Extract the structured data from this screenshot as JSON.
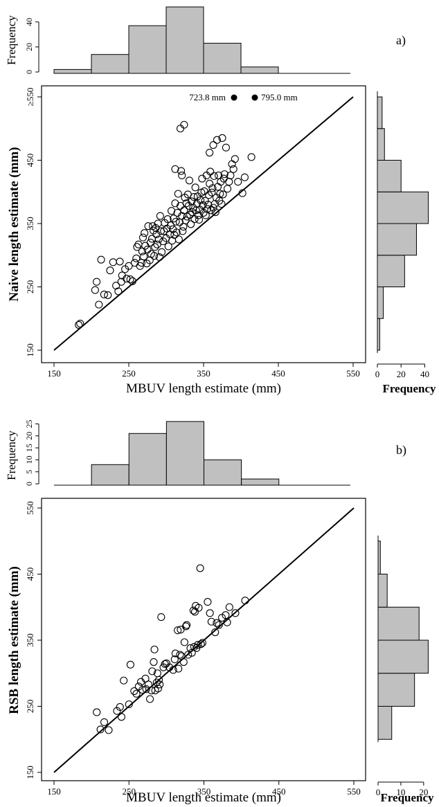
{
  "panels": [
    {
      "id": "a",
      "panel_label": "a)",
      "xlabel": "MBUV length estimate (mm)",
      "ylabel": "Naive length estimate (mm)",
      "hist_top_ylabel": "Frequency",
      "hist_right_xlabel": "Frequency",
      "off_scale_note_1": "723.8 mm",
      "off_scale_note_2": "795.0 mm",
      "x_ticks": [
        "150",
        "250",
        "350",
        "450",
        "550"
      ],
      "y_ticks": [
        "150",
        "250",
        "350",
        "450",
        "≥550"
      ],
      "top_hist_ticks": [
        "0",
        "20",
        "40"
      ],
      "right_hist_ticks": [
        "0",
        "20",
        "40"
      ]
    },
    {
      "id": "b",
      "panel_label": "b)",
      "xlabel": "MBUV length estimate (mm)",
      "ylabel": "RSB length estimate (mm)",
      "hist_top_ylabel": "Frequency",
      "hist_right_xlabel": "Frequency",
      "x_ticks": [
        "150",
        "250",
        "350",
        "450",
        "550"
      ],
      "y_ticks": [
        "150",
        "250",
        "350",
        "450",
        "550"
      ],
      "top_hist_ticks": [
        "0",
        "5",
        "10",
        "15",
        "20",
        "25"
      ],
      "right_hist_ticks": [
        "0",
        "10",
        "20"
      ]
    }
  ],
  "colors": {
    "bar_fill": "#c0c0c0",
    "ink": "#000000"
  },
  "chart_data": [
    {
      "type": "scatter",
      "panel": "a",
      "xlim": [
        150,
        550
      ],
      "ylim": [
        150,
        550
      ],
      "reference_line": [
        [
          150,
          150
        ],
        [
          550,
          550
        ]
      ],
      "off_scale_points": [
        723.8,
        795.0
      ],
      "points": [
        [
          185,
          192
        ],
        [
          183,
          190
        ],
        [
          205,
          245
        ],
        [
          207,
          258
        ],
        [
          210,
          222
        ],
        [
          213,
          293
        ],
        [
          217,
          238
        ],
        [
          222,
          237
        ],
        [
          225,
          276
        ],
        [
          229,
          289
        ],
        [
          233,
          252
        ],
        [
          236,
          243
        ],
        [
          238,
          290
        ],
        [
          240,
          258
        ],
        [
          241,
          268
        ],
        [
          245,
          278
        ],
        [
          247,
          263
        ],
        [
          250,
          283
        ],
        [
          252,
          262
        ],
        [
          255,
          259
        ],
        [
          258,
          288
        ],
        [
          260,
          295
        ],
        [
          261,
          313
        ],
        [
          263,
          317
        ],
        [
          265,
          283
        ],
        [
          267,
          288
        ],
        [
          268,
          306
        ],
        [
          269,
          328
        ],
        [
          270,
          298
        ],
        [
          271,
          335
        ],
        [
          272,
          315
        ],
        [
          274,
          287
        ],
        [
          275,
          309
        ],
        [
          276,
          346
        ],
        [
          278,
          292
        ],
        [
          279,
          320
        ],
        [
          280,
          302
        ],
        [
          281,
          326
        ],
        [
          282,
          346
        ],
        [
          283,
          339
        ],
        [
          284,
          299
        ],
        [
          285,
          313
        ],
        [
          286,
          343
        ],
        [
          287,
          333
        ],
        [
          288,
          317
        ],
        [
          289,
          350
        ],
        [
          290,
          325
        ],
        [
          291,
          297
        ],
        [
          292,
          362
        ],
        [
          293,
          338
        ],
        [
          294,
          305
        ],
        [
          296,
          322
        ],
        [
          297,
          338
        ],
        [
          298,
          351
        ],
        [
          300,
          327
        ],
        [
          301,
          342
        ],
        [
          302,
          357
        ],
        [
          303,
          314
        ],
        [
          305,
          333
        ],
        [
          306,
          347
        ],
        [
          307,
          370
        ],
        [
          308,
          323
        ],
        [
          309,
          341
        ],
        [
          310,
          358
        ],
        [
          311,
          332
        ],
        [
          312,
          382
        ],
        [
          313,
          353
        ],
        [
          314,
          336
        ],
        [
          315,
          367
        ],
        [
          316,
          397
        ],
        [
          317,
          325
        ],
        [
          318,
          352
        ],
        [
          319,
          378
        ],
        [
          320,
          433
        ],
        [
          321,
          362
        ],
        [
          322,
          338
        ],
        [
          323,
          345
        ],
        [
          324,
          371
        ],
        [
          325,
          391
        ],
        [
          326,
          355
        ],
        [
          327,
          382
        ],
        [
          328,
          361
        ],
        [
          329,
          396
        ],
        [
          330,
          378
        ],
        [
          331,
          418
        ],
        [
          332,
          364
        ],
        [
          333,
          349
        ],
        [
          334,
          385
        ],
        [
          335,
          368
        ],
        [
          336,
          375
        ],
        [
          337,
          392
        ],
        [
          338,
          357
        ],
        [
          339,
          407
        ],
        [
          340,
          371
        ],
        [
          341,
          381
        ],
        [
          342,
          393
        ],
        [
          343,
          363
        ],
        [
          344,
          356
        ],
        [
          345,
          372
        ],
        [
          346,
          387
        ],
        [
          347,
          399
        ],
        [
          348,
          421
        ],
        [
          349,
          379
        ],
        [
          350,
          367
        ],
        [
          351,
          401
        ],
        [
          352,
          386
        ],
        [
          353,
          363
        ],
        [
          354,
          426
        ],
        [
          355,
          373
        ],
        [
          356,
          380
        ],
        [
          357,
          395
        ],
        [
          358,
          413
        ],
        [
          359,
          432
        ],
        [
          360,
          371
        ],
        [
          361,
          399
        ],
        [
          362,
          406
        ],
        [
          363,
          375
        ],
        [
          364,
          425
        ],
        [
          365,
          381
        ],
        [
          366,
          368
        ],
        [
          367,
          391
        ],
        [
          368,
          482
        ],
        [
          369,
          408
        ],
        [
          370,
          426
        ],
        [
          371,
          386
        ],
        [
          372,
          397
        ],
        [
          373,
          416
        ],
        [
          374,
          381
        ],
        [
          375,
          485
        ],
        [
          376,
          396
        ],
        [
          377,
          421
        ],
        [
          378,
          428
        ],
        [
          380,
          470
        ],
        [
          382,
          405
        ],
        [
          384,
          416
        ],
        [
          386,
          426
        ],
        [
          388,
          444
        ],
        [
          390,
          436
        ],
        [
          392,
          452
        ],
        [
          396,
          416
        ],
        [
          402,
          398
        ],
        [
          405,
          423
        ],
        [
          414,
          455
        ],
        [
          319,
          500
        ],
        [
          324,
          506
        ],
        [
          312,
          436
        ],
        [
          321,
          426
        ],
        [
          358,
          462
        ],
        [
          363,
          474
        ]
      ]
    },
    {
      "type": "scatter",
      "panel": "b",
      "xlim": [
        150,
        550
      ],
      "ylim": [
        150,
        550
      ],
      "reference_line": [
        [
          150,
          150
        ],
        [
          550,
          550
        ]
      ],
      "points": [
        [
          207,
          241
        ],
        [
          212,
          215
        ],
        [
          217,
          226
        ],
        [
          223,
          214
        ],
        [
          234,
          243
        ],
        [
          238,
          249
        ],
        [
          240,
          234
        ],
        [
          243,
          289
        ],
        [
          250,
          253
        ],
        [
          252,
          313
        ],
        [
          257,
          273
        ],
        [
          260,
          269
        ],
        [
          263,
          280
        ],
        [
          266,
          287
        ],
        [
          268,
          275
        ],
        [
          272,
          292
        ],
        [
          273,
          276
        ],
        [
          276,
          283
        ],
        [
          278,
          261
        ],
        [
          280,
          274
        ],
        [
          281,
          303
        ],
        [
          283,
          317
        ],
        [
          284,
          336
        ],
        [
          285,
          274
        ],
        [
          287,
          286
        ],
        [
          288,
          300
        ],
        [
          289,
          277
        ],
        [
          290,
          290
        ],
        [
          291,
          283
        ],
        [
          293,
          385
        ],
        [
          296,
          309
        ],
        [
          298,
          314
        ],
        [
          300,
          315
        ],
        [
          304,
          309
        ],
        [
          309,
          305
        ],
        [
          311,
          321
        ],
        [
          312,
          330
        ],
        [
          315,
          365
        ],
        [
          316,
          307
        ],
        [
          318,
          328
        ],
        [
          319,
          366
        ],
        [
          320,
          326
        ],
        [
          323,
          317
        ],
        [
          324,
          347
        ],
        [
          326,
          371
        ],
        [
          327,
          373
        ],
        [
          329,
          328
        ],
        [
          332,
          338
        ],
        [
          334,
          331
        ],
        [
          336,
          395
        ],
        [
          337,
          340
        ],
        [
          338,
          393
        ],
        [
          339,
          402
        ],
        [
          340,
          338
        ],
        [
          342,
          343
        ],
        [
          343,
          399
        ],
        [
          345,
          459
        ],
        [
          346,
          344
        ],
        [
          348,
          346
        ],
        [
          355,
          408
        ],
        [
          358,
          391
        ],
        [
          360,
          378
        ],
        [
          365,
          362
        ],
        [
          367,
          376
        ],
        [
          370,
          373
        ],
        [
          374,
          384
        ],
        [
          379,
          388
        ],
        [
          381,
          377
        ],
        [
          384,
          400
        ],
        [
          392,
          391
        ],
        [
          405,
          410
        ]
      ]
    },
    {
      "type": "bar",
      "panel": "a-top",
      "bin_edges": [
        150,
        200,
        250,
        300,
        350,
        400,
        450
      ],
      "values": [
        2,
        14,
        37,
        52,
        23,
        4
      ],
      "ylim": [
        0,
        52
      ]
    },
    {
      "type": "bar",
      "panel": "a-right",
      "orientation": "horizontal",
      "bin_edges": [
        150,
        200,
        250,
        300,
        350,
        400,
        450,
        500,
        550
      ],
      "values": [
        2,
        5,
        23,
        33,
        43,
        20,
        6,
        4
      ],
      "xlim": [
        0,
        45
      ]
    },
    {
      "type": "bar",
      "panel": "b-top",
      "bin_edges": [
        150,
        200,
        250,
        300,
        350,
        400,
        450
      ],
      "values": [
        0,
        8,
        21,
        26,
        10,
        2
      ],
      "ylim": [
        0,
        26
      ]
    },
    {
      "type": "bar",
      "panel": "b-right",
      "orientation": "horizontal",
      "bin_edges": [
        200,
        250,
        300,
        350,
        400,
        450,
        500
      ],
      "values": [
        6,
        16,
        22,
        18,
        4,
        1
      ],
      "xlim": [
        0,
        24
      ]
    }
  ]
}
